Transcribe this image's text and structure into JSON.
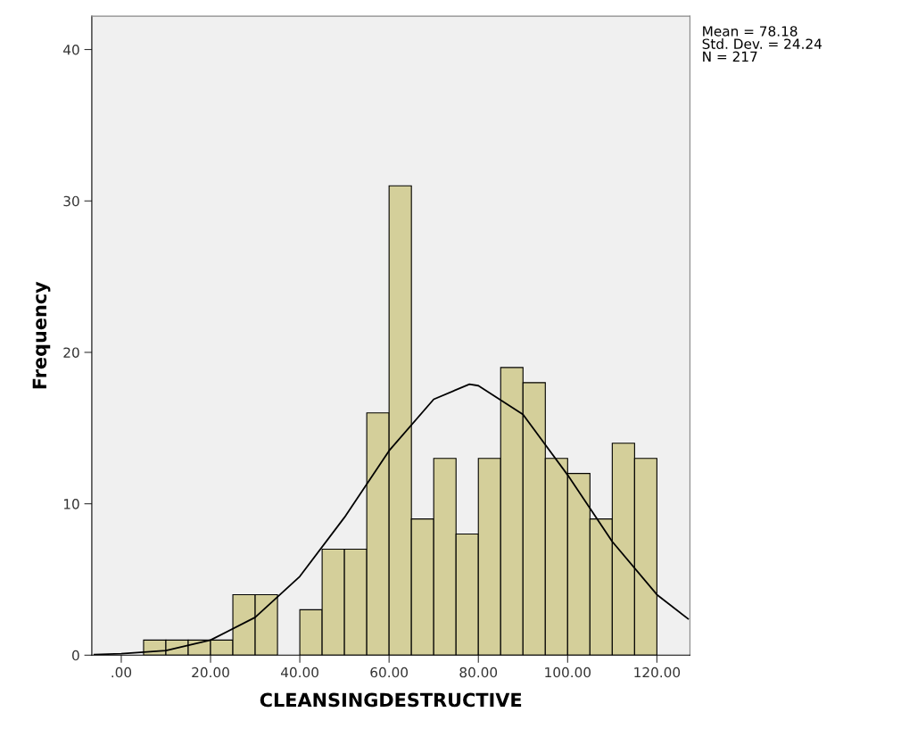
{
  "chart_data": {
    "type": "histogram",
    "xlabel": "CLEANSINGDESTRUCTIVE",
    "ylabel": "Frequency",
    "bins": [
      5,
      10,
      15,
      20,
      25,
      30,
      35,
      40,
      45,
      50,
      55,
      60,
      65,
      70,
      75,
      80,
      85,
      90,
      95,
      100,
      105,
      110,
      115,
      120
    ],
    "values": [
      1,
      1,
      1,
      1,
      4,
      4,
      0,
      3,
      7,
      7,
      16,
      31,
      9,
      13,
      8,
      13,
      19,
      18,
      13,
      12,
      9,
      14,
      13
    ],
    "color": "#d4cf9a",
    "series": [
      {
        "type": "line",
        "color": "#000000",
        "x": [
          -6,
          0,
          10,
          20,
          30,
          40,
          50,
          60,
          70,
          78,
          80,
          90,
          100,
          110,
          120,
          127
        ],
        "values": [
          0.04,
          0.1,
          0.3,
          1.0,
          2.5,
          5.2,
          9.1,
          13.5,
          16.9,
          17.9,
          17.8,
          15.9,
          11.9,
          7.5,
          4.0,
          2.4
        ]
      }
    ],
    "xlim": [
      -6.6,
      127.4
    ],
    "ylim": [
      0,
      42.2
    ],
    "xticks": [
      {
        "value": 0,
        "label": ".00"
      },
      {
        "value": 20,
        "label": "20.00"
      },
      {
        "value": 40,
        "label": "40.00"
      },
      {
        "value": 60,
        "label": "60.00"
      },
      {
        "value": 80,
        "label": "80.00"
      },
      {
        "value": 100,
        "label": "100.00"
      },
      {
        "value": 120,
        "label": "120.00"
      }
    ],
    "yticks": [
      0,
      10,
      20,
      30,
      40
    ],
    "annotations": [
      "Mean = 78.18\nStd. Dev. = 24.24\nN = 217"
    ]
  }
}
